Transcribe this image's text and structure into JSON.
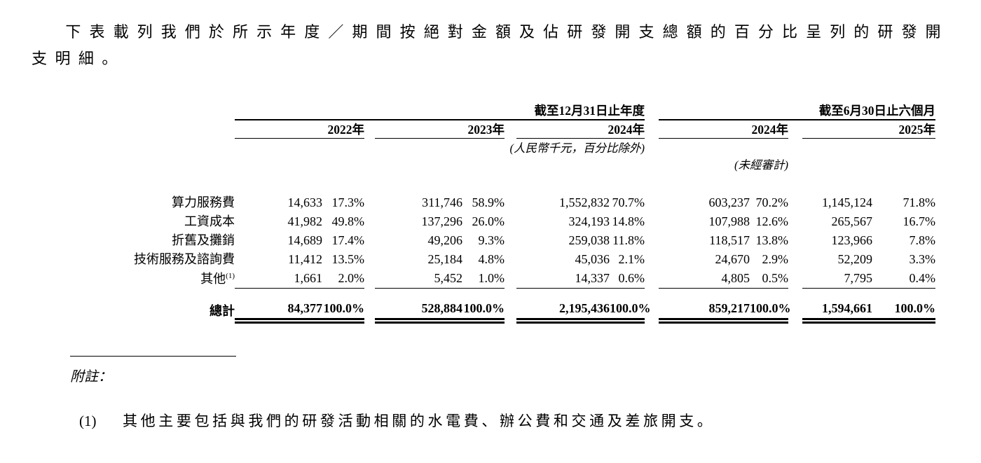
{
  "intro": "下表載列我們於所示年度／期間按絕對金額及佔研發開支總額的百分比呈列的研發開支明細。",
  "table": {
    "group_headers": [
      {
        "label": "截至12月31日止年度"
      },
      {
        "label": "截至6月30日止六個月"
      }
    ],
    "year_headers": [
      "2022年",
      "2023年",
      "2024年",
      "2024年",
      "2025年"
    ],
    "unit_note": "(人民幣千元，百分比除外)",
    "unaudited_note": "(未經審計)",
    "rows": [
      {
        "label": "算力服務費",
        "values": [
          "14,633",
          "17.3%",
          "311,746",
          "58.9%",
          "1,552,832",
          "70.7%",
          "603,237",
          "70.2%",
          "1,145,124",
          "71.8%"
        ]
      },
      {
        "label": "工資成本",
        "values": [
          "41,982",
          "49.8%",
          "137,296",
          "26.0%",
          "324,193",
          "14.8%",
          "107,988",
          "12.6%",
          "265,567",
          "16.7%"
        ]
      },
      {
        "label": "折舊及攤銷",
        "values": [
          "14,689",
          "17.4%",
          "49,206",
          "9.3%",
          "259,038",
          "11.8%",
          "118,517",
          "13.8%",
          "123,966",
          "7.8%"
        ]
      },
      {
        "label": "技術服務及諮詢費",
        "values": [
          "11,412",
          "13.5%",
          "25,184",
          "4.8%",
          "45,036",
          "2.1%",
          "24,670",
          "2.9%",
          "52,209",
          "3.3%"
        ]
      },
      {
        "label": "其他",
        "sup": "(1)",
        "values": [
          "1,661",
          "2.0%",
          "5,452",
          "1.0%",
          "14,337",
          "0.6%",
          "4,805",
          "0.5%",
          "7,795",
          "0.4%"
        ]
      }
    ],
    "total_row": {
      "label": "總計",
      "values": [
        "84,377",
        "100.0%",
        "528,884",
        "100.0%",
        "2,195,436",
        "100.0%",
        "859,217",
        "100.0%",
        "1,594,661",
        "100.0%"
      ]
    }
  },
  "notes": {
    "heading": "附註：",
    "items": [
      {
        "num": "(1)",
        "text": "其他主要包括與我們的研發活動相關的水電費、辦公費和交通及差旅開支。"
      }
    ]
  }
}
